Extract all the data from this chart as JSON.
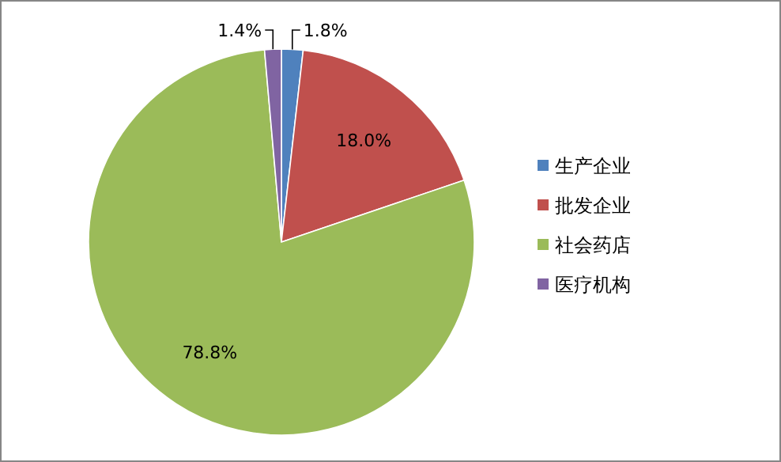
{
  "chart_data": {
    "type": "pie",
    "categories": [
      "生产企业",
      "批发企业",
      "社会药店",
      "医疗机构"
    ],
    "values": [
      1.8,
      18.0,
      78.8,
      1.4
    ],
    "colors": [
      "#4f81bd",
      "#c0504d",
      "#9bbb59",
      "#8064a2"
    ],
    "value_labels": [
      "1.8%",
      "18.0%",
      "78.8%",
      "1.4%"
    ],
    "legend": "right"
  }
}
